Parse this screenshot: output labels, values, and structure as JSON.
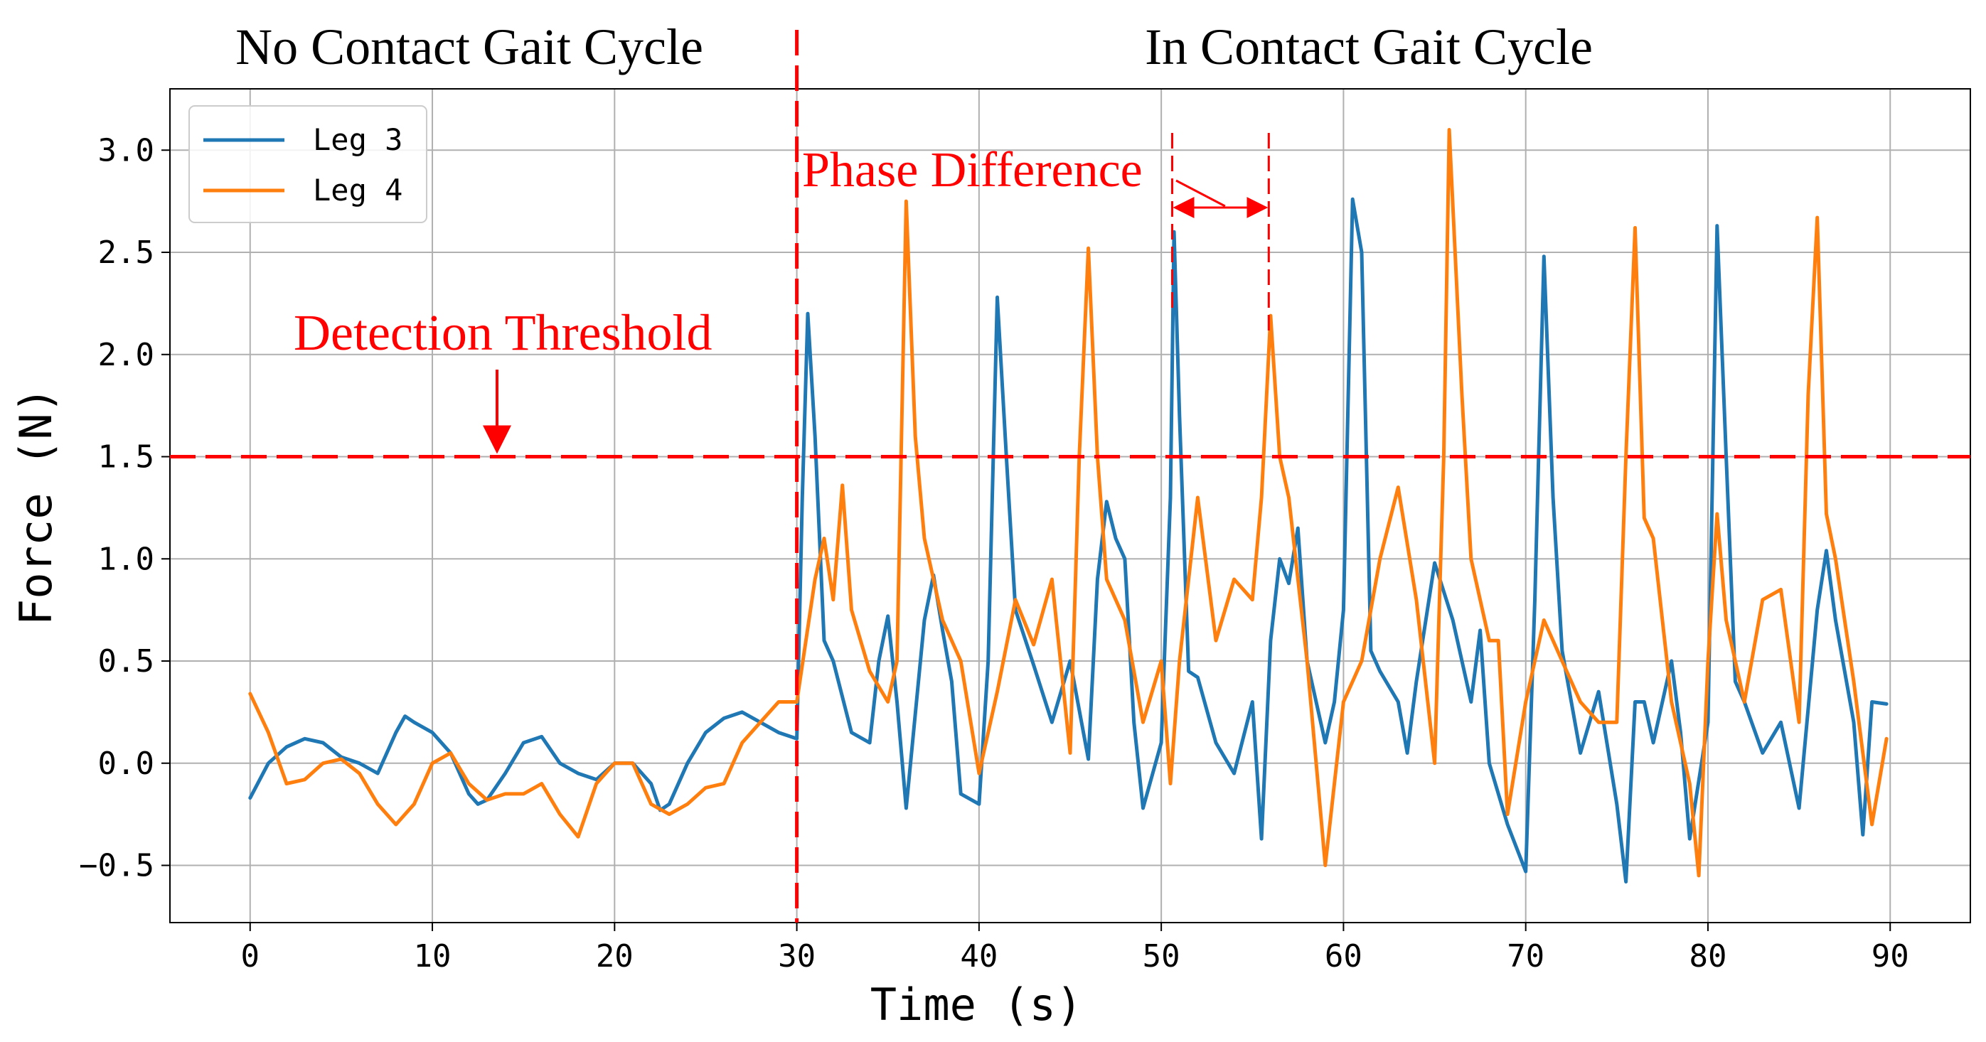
{
  "chart_data": {
    "type": "line",
    "xlabel": "Time (s)",
    "ylabel": "Force (N)",
    "xlim": [
      -4.4,
      94.4
    ],
    "ylim": [
      -0.78,
      3.3
    ],
    "xticks": [
      0,
      10,
      20,
      30,
      40,
      50,
      60,
      70,
      80,
      90
    ],
    "xtick_labels": [
      "0",
      "10",
      "20",
      "30",
      "40",
      "50",
      "60",
      "70",
      "80",
      "90"
    ],
    "yticks": [
      -0.5,
      0.0,
      0.5,
      1.0,
      1.5,
      2.0,
      2.5,
      3.0
    ],
    "ytick_labels": [
      "−0.5",
      "0.0",
      "0.5",
      "1.0",
      "1.5",
      "2.0",
      "2.5",
      "3.0"
    ],
    "grid": true,
    "legend": {
      "position": "top-left",
      "entries": [
        "Leg 3",
        "Leg 4"
      ]
    },
    "colors": {
      "leg3": "#1f77b4",
      "leg4": "#ff7f0e",
      "annotation": "#ff0000",
      "grid": "#b0b0b0"
    },
    "series": [
      {
        "name": "Leg 3",
        "color": "#1f77b4",
        "points": [
          [
            0,
            -0.17
          ],
          [
            1,
            0.0
          ],
          [
            2,
            0.08
          ],
          [
            3,
            0.12
          ],
          [
            4,
            0.1
          ],
          [
            5,
            0.03
          ],
          [
            6,
            0.0
          ],
          [
            7,
            -0.05
          ],
          [
            8,
            0.15
          ],
          [
            8.5,
            0.23
          ],
          [
            9,
            0.2
          ],
          [
            10,
            0.15
          ],
          [
            11,
            0.05
          ],
          [
            12,
            -0.15
          ],
          [
            12.5,
            -0.2
          ],
          [
            13,
            -0.18
          ],
          [
            14,
            -0.05
          ],
          [
            15,
            0.1
          ],
          [
            16,
            0.13
          ],
          [
            17,
            0.0
          ],
          [
            18,
            -0.05
          ],
          [
            19,
            -0.08
          ],
          [
            20,
            0.0
          ],
          [
            21,
            0.0
          ],
          [
            22,
            -0.1
          ],
          [
            22.5,
            -0.23
          ],
          [
            23,
            -0.2
          ],
          [
            24,
            0.0
          ],
          [
            25,
            0.15
          ],
          [
            26,
            0.22
          ],
          [
            27,
            0.25
          ],
          [
            28,
            0.2
          ],
          [
            29,
            0.15
          ],
          [
            30,
            0.12
          ],
          [
            30.3,
            1.3
          ],
          [
            30.6,
            2.2
          ],
          [
            31,
            1.6
          ],
          [
            31.5,
            0.6
          ],
          [
            32,
            0.5
          ],
          [
            33,
            0.15
          ],
          [
            34,
            0.1
          ],
          [
            34.5,
            0.5
          ],
          [
            35,
            0.72
          ],
          [
            35.5,
            0.3
          ],
          [
            36,
            -0.22
          ],
          [
            37,
            0.7
          ],
          [
            37.5,
            0.92
          ],
          [
            38,
            0.65
          ],
          [
            38.5,
            0.4
          ],
          [
            39,
            -0.15
          ],
          [
            40,
            -0.2
          ],
          [
            40.5,
            0.5
          ],
          [
            41,
            2.28
          ],
          [
            41.5,
            1.5
          ],
          [
            42,
            0.75
          ],
          [
            43,
            0.48
          ],
          [
            44,
            0.2
          ],
          [
            45,
            0.5
          ],
          [
            46,
            0.02
          ],
          [
            46.5,
            0.9
          ],
          [
            47,
            1.28
          ],
          [
            47.5,
            1.1
          ],
          [
            48,
            1.0
          ],
          [
            48.5,
            0.2
          ],
          [
            49,
            -0.22
          ],
          [
            50,
            0.1
          ],
          [
            50.5,
            1.3
          ],
          [
            50.7,
            2.6
          ],
          [
            51,
            1.7
          ],
          [
            51.5,
            0.45
          ],
          [
            52,
            0.42
          ],
          [
            53,
            0.1
          ],
          [
            54,
            -0.05
          ],
          [
            55,
            0.3
          ],
          [
            55.5,
            -0.37
          ],
          [
            56,
            0.6
          ],
          [
            56.5,
            1.0
          ],
          [
            57,
            0.88
          ],
          [
            57.5,
            1.15
          ],
          [
            58,
            0.5
          ],
          [
            59,
            0.1
          ],
          [
            59.5,
            0.3
          ],
          [
            60,
            0.75
          ],
          [
            60.5,
            2.76
          ],
          [
            61,
            2.5
          ],
          [
            61.5,
            0.55
          ],
          [
            62,
            0.45
          ],
          [
            63,
            0.3
          ],
          [
            63.5,
            0.05
          ],
          [
            64,
            0.4
          ],
          [
            65,
            0.98
          ],
          [
            66,
            0.7
          ],
          [
            67,
            0.3
          ],
          [
            67.5,
            0.65
          ],
          [
            68,
            0.0
          ],
          [
            69,
            -0.3
          ],
          [
            70,
            -0.53
          ],
          [
            70.5,
            0.8
          ],
          [
            71,
            2.48
          ],
          [
            71.5,
            1.3
          ],
          [
            72,
            0.55
          ],
          [
            72.5,
            0.3
          ],
          [
            73,
            0.05
          ],
          [
            74,
            0.35
          ],
          [
            75,
            -0.2
          ],
          [
            75.5,
            -0.58
          ],
          [
            76,
            0.3
          ],
          [
            76.5,
            0.3
          ],
          [
            77,
            0.1
          ],
          [
            78,
            0.5
          ],
          [
            78.5,
            0.15
          ],
          [
            79,
            -0.37
          ],
          [
            80,
            0.2
          ],
          [
            80.5,
            2.63
          ],
          [
            81,
            1.5
          ],
          [
            81.5,
            0.4
          ],
          [
            82,
            0.3
          ],
          [
            83,
            0.05
          ],
          [
            84,
            0.2
          ],
          [
            85,
            -0.22
          ],
          [
            86,
            0.75
          ],
          [
            86.5,
            1.04
          ],
          [
            87,
            0.7
          ],
          [
            88,
            0.2
          ],
          [
            88.5,
            -0.35
          ],
          [
            89,
            0.3
          ],
          [
            89.8,
            0.29
          ]
        ]
      },
      {
        "name": "Leg 4",
        "color": "#ff7f0e",
        "points": [
          [
            0,
            0.34
          ],
          [
            1,
            0.15
          ],
          [
            2,
            -0.1
          ],
          [
            3,
            -0.08
          ],
          [
            4,
            0.0
          ],
          [
            5,
            0.02
          ],
          [
            6,
            -0.05
          ],
          [
            7,
            -0.2
          ],
          [
            8,
            -0.3
          ],
          [
            9,
            -0.2
          ],
          [
            10,
            0.0
          ],
          [
            11,
            0.05
          ],
          [
            12,
            -0.1
          ],
          [
            13,
            -0.18
          ],
          [
            14,
            -0.15
          ],
          [
            15,
            -0.15
          ],
          [
            16,
            -0.1
          ],
          [
            17,
            -0.25
          ],
          [
            18,
            -0.36
          ],
          [
            19,
            -0.1
          ],
          [
            20,
            0.0
          ],
          [
            21,
            0.0
          ],
          [
            22,
            -0.2
          ],
          [
            23,
            -0.25
          ],
          [
            24,
            -0.2
          ],
          [
            25,
            -0.12
          ],
          [
            26,
            -0.1
          ],
          [
            27,
            0.1
          ],
          [
            28,
            0.2
          ],
          [
            29,
            0.3
          ],
          [
            30,
            0.3
          ],
          [
            30.5,
            0.6
          ],
          [
            31,
            0.9
          ],
          [
            31.5,
            1.1
          ],
          [
            32,
            0.8
          ],
          [
            32.5,
            1.36
          ],
          [
            33,
            0.75
          ],
          [
            34,
            0.45
          ],
          [
            35,
            0.3
          ],
          [
            35.5,
            0.5
          ],
          [
            36,
            2.75
          ],
          [
            36.5,
            1.6
          ],
          [
            37,
            1.1
          ],
          [
            38,
            0.7
          ],
          [
            39,
            0.5
          ],
          [
            40,
            -0.05
          ],
          [
            41,
            0.35
          ],
          [
            42,
            0.8
          ],
          [
            43,
            0.58
          ],
          [
            44,
            0.9
          ],
          [
            45,
            0.05
          ],
          [
            45.5,
            1.5
          ],
          [
            46,
            2.52
          ],
          [
            46.5,
            1.5
          ],
          [
            47,
            0.9
          ],
          [
            48,
            0.7
          ],
          [
            49,
            0.2
          ],
          [
            50,
            0.5
          ],
          [
            50.5,
            -0.1
          ],
          [
            51,
            0.5
          ],
          [
            52,
            1.3
          ],
          [
            53,
            0.6
          ],
          [
            54,
            0.9
          ],
          [
            55,
            0.8
          ],
          [
            55.5,
            1.3
          ],
          [
            56,
            2.19
          ],
          [
            56.5,
            1.5
          ],
          [
            57,
            1.3
          ],
          [
            58,
            0.5
          ],
          [
            59,
            -0.5
          ],
          [
            60,
            0.3
          ],
          [
            61,
            0.5
          ],
          [
            62,
            1.0
          ],
          [
            63,
            1.35
          ],
          [
            64,
            0.8
          ],
          [
            65,
            0.0
          ],
          [
            65.5,
            1.5
          ],
          [
            65.8,
            3.1
          ],
          [
            66.5,
            1.8
          ],
          [
            67,
            1.0
          ],
          [
            68,
            0.6
          ],
          [
            68.5,
            0.6
          ],
          [
            69,
            -0.25
          ],
          [
            70,
            0.3
          ],
          [
            70.5,
            0.5
          ],
          [
            71,
            0.7
          ],
          [
            72,
            0.5
          ],
          [
            73,
            0.3
          ],
          [
            74,
            0.2
          ],
          [
            75,
            0.2
          ],
          [
            75.5,
            1.5
          ],
          [
            76,
            2.62
          ],
          [
            76.5,
            1.2
          ],
          [
            77,
            1.1
          ],
          [
            78,
            0.3
          ],
          [
            79,
            -0.1
          ],
          [
            79.5,
            -0.55
          ],
          [
            80,
            0.5
          ],
          [
            80.5,
            1.22
          ],
          [
            81,
            0.7
          ],
          [
            82,
            0.3
          ],
          [
            83,
            0.8
          ],
          [
            84,
            0.85
          ],
          [
            85,
            0.2
          ],
          [
            85.5,
            1.8
          ],
          [
            86,
            2.67
          ],
          [
            86.5,
            1.22
          ],
          [
            87,
            1.0
          ],
          [
            88,
            0.4
          ],
          [
            89,
            -0.3
          ],
          [
            89.8,
            0.12
          ]
        ]
      }
    ],
    "annotations": {
      "left_title": "No Contact Gait Cycle",
      "right_title": "In Contact Gait Cycle",
      "threshold_label": "Detection Threshold",
      "threshold_value": 1.5,
      "phase_label": "Phase Difference",
      "divider_time": 30,
      "phase_start": 50.6,
      "phase_end": 55.9
    }
  }
}
